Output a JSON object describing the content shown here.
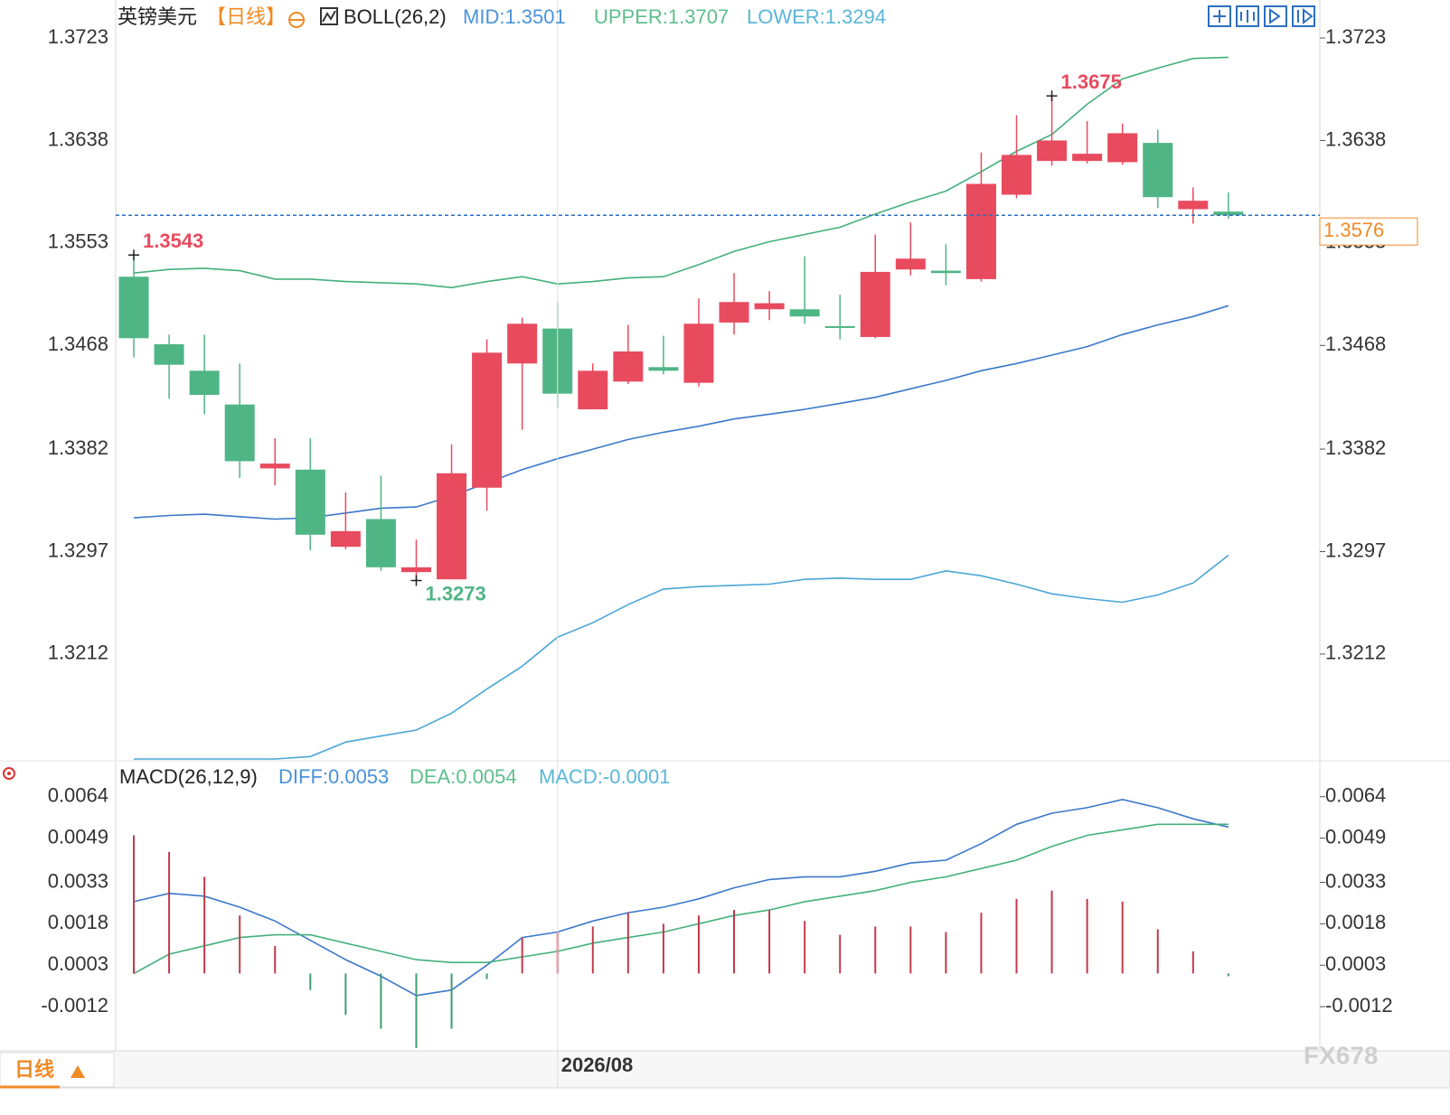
{
  "chart_data": [
    {
      "type": "candlestick",
      "title": "英镑美元",
      "period": "【日线】",
      "indicator": "BOLL(26,2)",
      "categories": [
        null,
        null,
        null,
        null,
        null,
        null,
        null,
        null,
        null,
        null,
        null,
        null,
        "2026/08",
        null,
        null,
        null,
        null,
        null,
        null,
        null,
        null,
        null,
        null,
        null,
        null,
        null,
        null,
        null,
        null,
        null,
        null,
        null
      ],
      "open": [
        1.3525,
        1.3469,
        1.3447,
        1.3419,
        1.3366,
        1.3365,
        1.3301,
        1.3324,
        1.328,
        1.3274,
        1.335,
        1.3453,
        1.3482,
        1.3415,
        1.3438,
        1.345,
        1.3437,
        1.3487,
        1.3498,
        1.3498,
        1.3484,
        1.3475,
        1.3531,
        1.353,
        1.3523,
        1.3593,
        1.3621,
        1.3621,
        1.362,
        1.3636,
        1.3581,
        1.3579
      ],
      "high": [
        1.3543,
        1.3477,
        1.3477,
        1.3453,
        1.3391,
        1.3391,
        1.3346,
        1.336,
        1.3307,
        1.3386,
        1.3473,
        1.3491,
        1.3504,
        1.3453,
        1.3485,
        1.3476,
        1.3507,
        1.3528,
        1.3513,
        1.3542,
        1.351,
        1.356,
        1.357,
        1.3552,
        1.3628,
        1.3659,
        1.3675,
        1.3654,
        1.3652,
        1.3647,
        1.3599,
        1.3595
      ],
      "low": [
        1.3458,
        1.3424,
        1.3411,
        1.3358,
        1.3352,
        1.3298,
        1.3299,
        1.3281,
        1.3273,
        1.3274,
        1.3331,
        1.3398,
        1.3416,
        1.3415,
        1.3436,
        1.3444,
        1.3434,
        1.3477,
        1.3489,
        1.3486,
        1.3473,
        1.3474,
        1.3526,
        1.3518,
        1.3521,
        1.359,
        1.3617,
        1.3619,
        1.3618,
        1.3582,
        1.3569,
        1.3573
      ],
      "close": [
        1.3474,
        1.3452,
        1.3427,
        1.3372,
        1.337,
        1.3311,
        1.3314,
        1.3284,
        1.3284,
        1.3362,
        1.3462,
        1.3486,
        1.3428,
        1.3447,
        1.3463,
        1.3447,
        1.3486,
        1.3504,
        1.3503,
        1.3492,
        1.3483,
        1.3529,
        1.354,
        1.3528,
        1.3602,
        1.3626,
        1.3638,
        1.3627,
        1.3644,
        1.3591,
        1.3588,
        1.3576
      ],
      "up_color": "#e84b5e",
      "down_color": "#4fb585",
      "series": [
        {
          "name": "MID:1.3501",
          "color": "#3b78c9",
          "legend_color": "#4a93da",
          "values": [
            1.3325,
            1.3327,
            1.3328,
            1.3326,
            1.3324,
            1.3325,
            1.3329,
            1.3333,
            1.3334,
            1.3343,
            1.3354,
            1.3365,
            1.3374,
            1.3382,
            1.339,
            1.3396,
            1.3401,
            1.3407,
            1.3411,
            1.3415,
            1.342,
            1.3425,
            1.3432,
            1.3439,
            1.3447,
            1.3453,
            1.346,
            1.3467,
            1.3477,
            1.3485,
            1.3492,
            1.3501
          ]
        },
        {
          "name": "UPPER:1.3707",
          "color": "#43b07c",
          "legend_color": "#5dbf8b",
          "values": [
            1.3528,
            1.3531,
            1.3532,
            1.353,
            1.3523,
            1.3523,
            1.3521,
            1.352,
            1.3519,
            1.3516,
            1.3521,
            1.3525,
            1.3519,
            1.3521,
            1.3524,
            1.3525,
            1.3535,
            1.3546,
            1.3554,
            1.356,
            1.3566,
            1.3577,
            1.3587,
            1.3596,
            1.3612,
            1.3629,
            1.3643,
            1.3668,
            1.3689,
            1.3698,
            1.3706,
            1.3707
          ]
        },
        {
          "name": "LOWER:1.3294",
          "color": "#4aa6d6",
          "legend_color": "#5ab6d8",
          "values": [
            1.3125,
            1.3125,
            1.3125,
            1.3125,
            1.3125,
            1.3127,
            1.3139,
            1.3144,
            1.3149,
            1.3163,
            1.3183,
            1.3202,
            1.3226,
            1.3238,
            1.3253,
            1.3266,
            1.3268,
            1.3269,
            1.327,
            1.3274,
            1.3275,
            1.3274,
            1.3274,
            1.3281,
            1.3277,
            1.327,
            1.3262,
            1.3258,
            1.3255,
            1.3261,
            1.3271,
            1.3294
          ]
        }
      ],
      "annotations": [
        {
          "label": "1.3543",
          "value": 1.3543,
          "color": "#e84b5e"
        },
        {
          "label": "1.3273",
          "value": 1.3273,
          "color": "#4fb585"
        },
        {
          "label": "1.3675",
          "value": 1.3675,
          "color": "#e84b5e"
        }
      ],
      "last_color": "#f08a24",
      "ylim": [
        1.3125,
        1.3753
      ],
      "yticks": [
        1.3723,
        1.3638,
        1.3553,
        1.3468,
        1.3382,
        1.3297,
        1.3212
      ]
    },
    {
      "type": "macd",
      "title": "MACD(26,12,9)",
      "series": [
        {
          "name": "DIFF:0.0053",
          "style": "line",
          "color": "#3b78c9",
          "legend_color": "#4a93da",
          "values": [
            0.0026,
            0.0029,
            0.0028,
            0.0024,
            0.0019,
            0.0012,
            0.0005,
            -0.0001,
            -0.0008,
            -0.0006,
            0.0003,
            0.0013,
            0.0015,
            0.0019,
            0.0022,
            0.0024,
            0.0027,
            0.0031,
            0.0034,
            0.0035,
            0.0035,
            0.0037,
            0.004,
            0.0041,
            0.0047,
            0.0054,
            0.0058,
            0.006,
            0.0063,
            0.006,
            0.0056,
            0.0053
          ]
        },
        {
          "name": "DEA:0.0054",
          "style": "line",
          "color": "#43b07c",
          "legend_color": "#5dbf8b",
          "values": [
            0.0,
            0.0007,
            0.001,
            0.0013,
            0.0014,
            0.0014,
            0.0011,
            0.0008,
            0.0005,
            0.0004,
            0.0004,
            0.0006,
            0.0008,
            0.0011,
            0.0013,
            0.0015,
            0.0018,
            0.0021,
            0.0023,
            0.0026,
            0.0028,
            0.003,
            0.0033,
            0.0035,
            0.0038,
            0.0041,
            0.0046,
            0.005,
            0.0052,
            0.0054,
            0.0054,
            0.0054
          ]
        },
        {
          "name": "MACD:-0.0001",
          "style": "bar",
          "color": "#c23a4b",
          "down_color": "#3f9e70",
          "legend_color": "#5ab6d8",
          "values": [
            0.005,
            0.0044,
            0.0035,
            0.0021,
            0.001,
            -0.0006,
            -0.0015,
            -0.002,
            -0.0027,
            -0.002,
            -0.0002,
            0.0013,
            0.0015,
            0.0017,
            0.0022,
            0.0018,
            0.0021,
            0.0023,
            0.0023,
            0.0019,
            0.0014,
            0.0017,
            0.0017,
            0.0015,
            0.0022,
            0.0027,
            0.003,
            0.0027,
            0.0026,
            0.0016,
            0.0008,
            -0.0001
          ]
        }
      ],
      "ylim": [
        -0.0028,
        0.0076
      ],
      "yticks": [
        0.0064,
        0.0049,
        0.0033,
        0.0018,
        0.0003,
        -0.0012
      ]
    }
  ],
  "footer": {
    "period": "日线",
    "watermark": "FX678"
  }
}
